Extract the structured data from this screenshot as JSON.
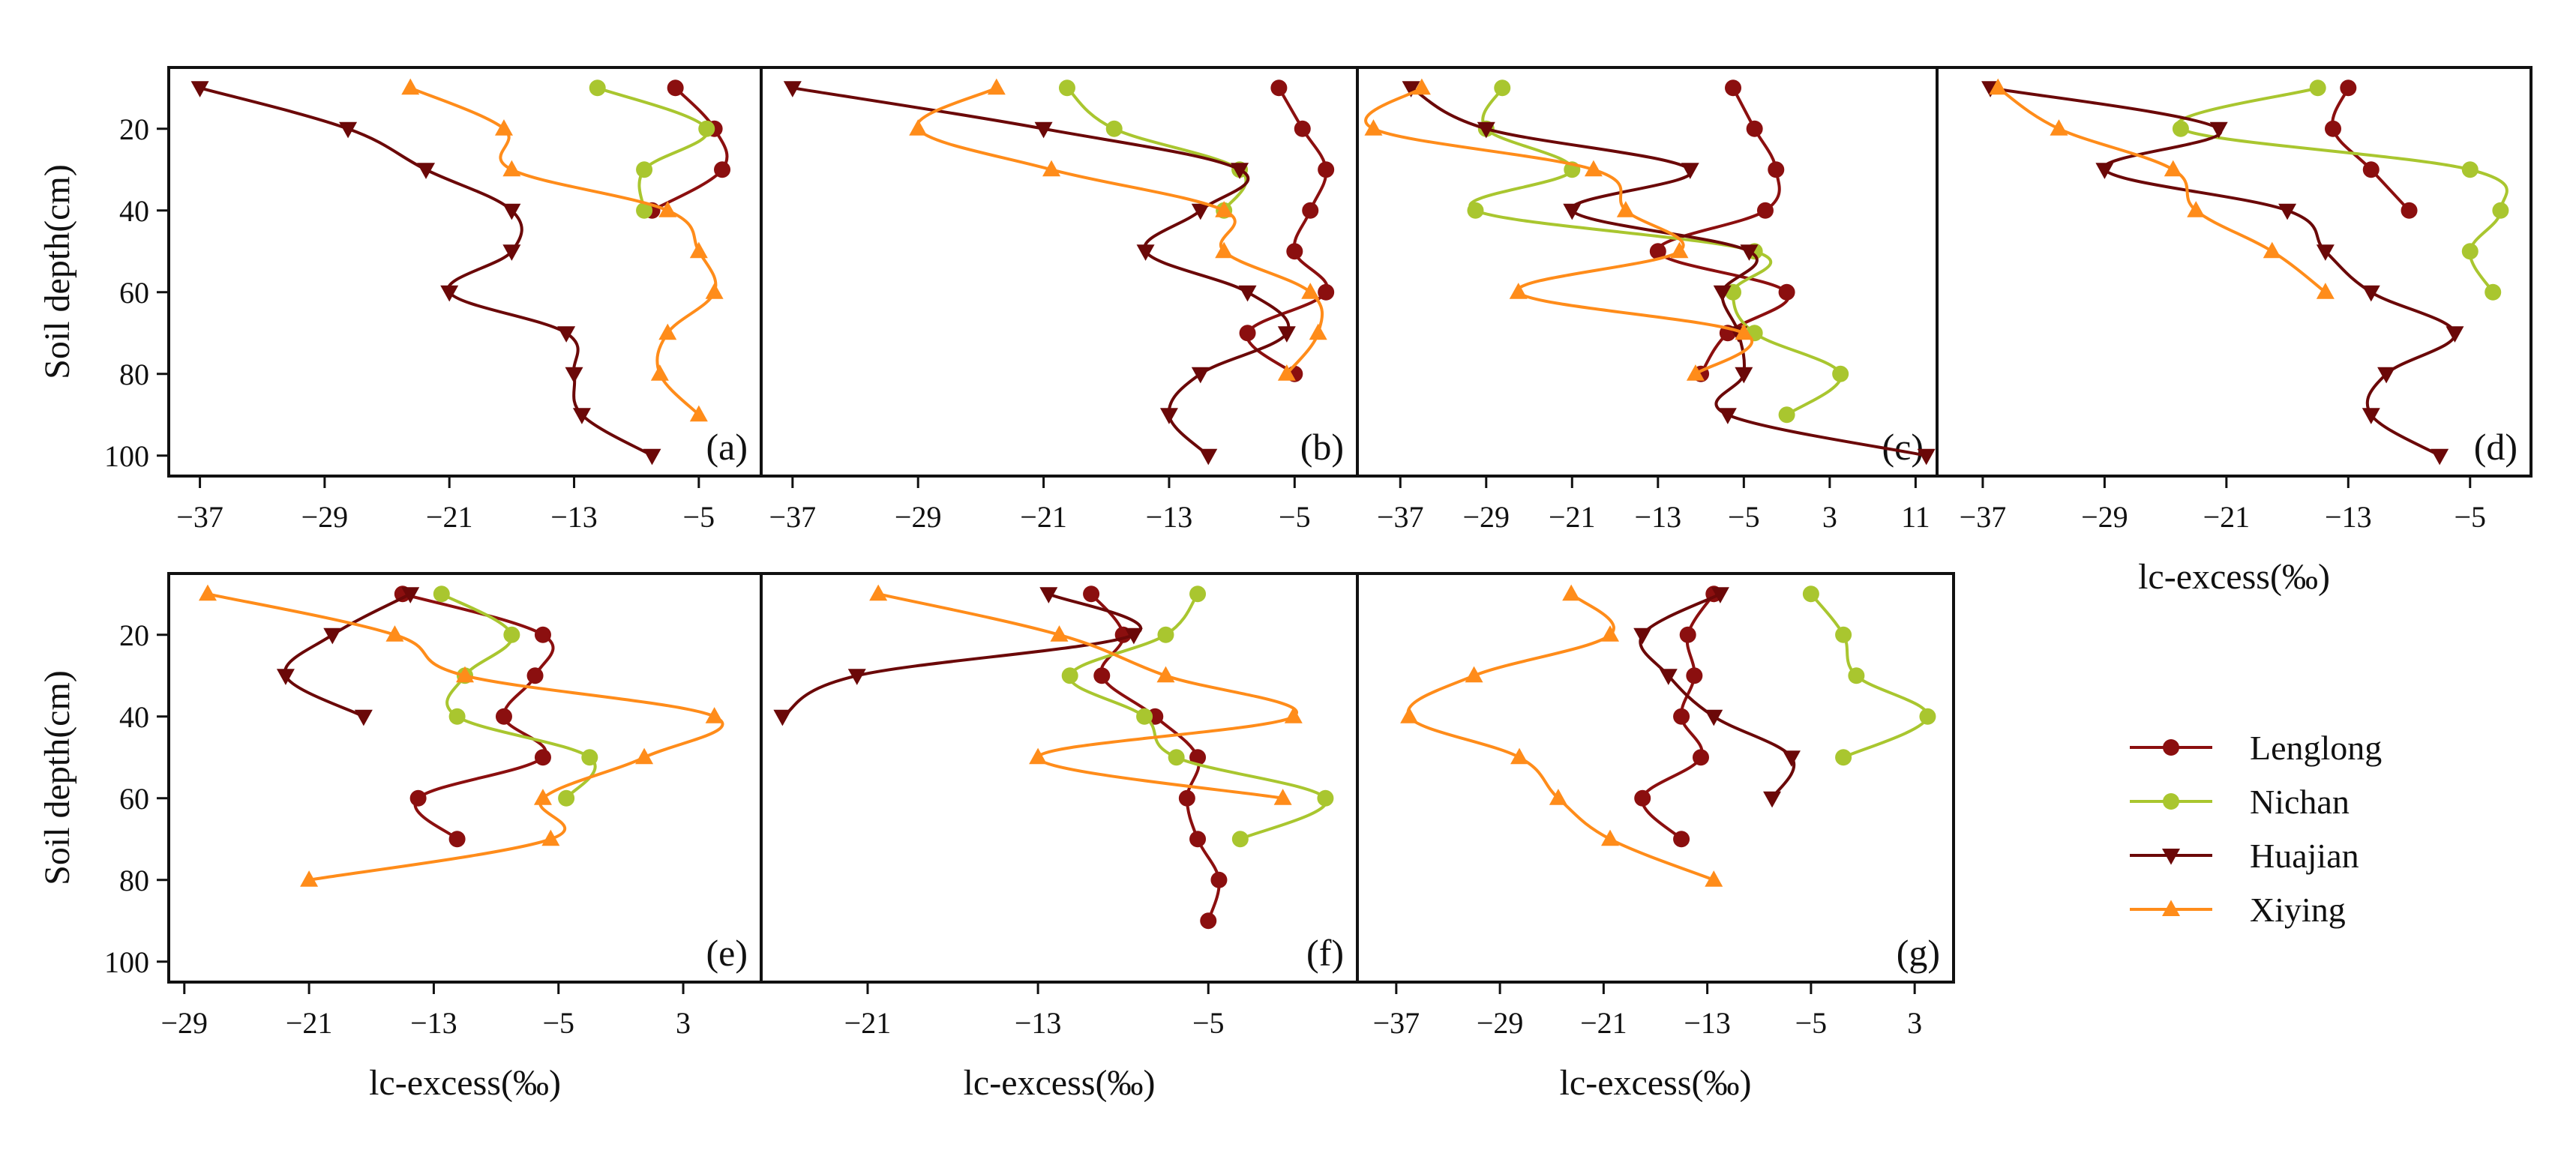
{
  "colors": {
    "Lenglong": "#8b0f0f",
    "Nichan": "#a9c62f",
    "Huajian": "#6b0808",
    "Xiying": "#ff8c1a"
  },
  "chart_data": [
    {
      "type": "line",
      "panel": "(a)",
      "xticks": [
        -37,
        -29,
        -21,
        -13,
        -5
      ],
      "xlim": [
        -39,
        -1
      ],
      "ylim": [
        5,
        105
      ],
      "yticks": [
        20,
        40,
        60,
        80,
        100
      ],
      "ylabel": "Soil depth(cm)",
      "xlabel": "",
      "series": [
        {
          "name": "Lenglong",
          "marker": "circle",
          "points": [
            [
              -6.5,
              10
            ],
            [
              -4,
              20
            ],
            [
              -3.5,
              30
            ],
            [
              -8,
              40
            ]
          ]
        },
        {
          "name": "Nichan",
          "marker": "circle",
          "points": [
            [
              -11.5,
              10
            ],
            [
              -4.5,
              20
            ],
            [
              -8.5,
              30
            ],
            [
              -8.5,
              40
            ]
          ]
        },
        {
          "name": "Huajian",
          "marker": "triangle-down",
          "points": [
            [
              -37,
              10
            ],
            [
              -27.5,
              20
            ],
            [
              -22.5,
              30
            ],
            [
              -17,
              40
            ],
            [
              -17,
              50
            ],
            [
              -21,
              60
            ],
            [
              -13.5,
              70
            ],
            [
              -13,
              80
            ],
            [
              -12.5,
              90
            ],
            [
              -8,
              100
            ]
          ]
        },
        {
          "name": "Xiying",
          "marker": "triangle-up",
          "points": [
            [
              -23.5,
              10
            ],
            [
              -17.5,
              20
            ],
            [
              -17,
              30
            ],
            [
              -7,
              40
            ],
            [
              -5,
              50
            ],
            [
              -4,
              60
            ],
            [
              -7,
              70
            ],
            [
              -7.5,
              80
            ],
            [
              -5,
              90
            ]
          ]
        }
      ]
    },
    {
      "type": "line",
      "panel": "(b)",
      "xticks": [
        -37,
        -29,
        -21,
        -13,
        -5
      ],
      "xlim": [
        -39,
        -1
      ],
      "ylim": [
        5,
        105
      ],
      "yticks": [
        20,
        40,
        60,
        80,
        100
      ],
      "ylabel": "",
      "xlabel": "",
      "series": [
        {
          "name": "Lenglong",
          "marker": "circle",
          "points": [
            [
              -6,
              10
            ],
            [
              -4.5,
              20
            ],
            [
              -3,
              30
            ],
            [
              -4,
              40
            ],
            [
              -5,
              50
            ],
            [
              -3,
              60
            ],
            [
              -8,
              70
            ],
            [
              -5,
              80
            ]
          ]
        },
        {
          "name": "Nichan",
          "marker": "circle",
          "points": [
            [
              -19.5,
              10
            ],
            [
              -16.5,
              20
            ],
            [
              -8.5,
              30
            ],
            [
              -9.5,
              40
            ]
          ]
        },
        {
          "name": "Huajian",
          "marker": "triangle-down",
          "points": [
            [
              -37,
              10
            ],
            [
              -21,
              20
            ],
            [
              -8.5,
              30
            ],
            [
              -11,
              40
            ],
            [
              -14.5,
              50
            ],
            [
              -8,
              60
            ],
            [
              -5.5,
              70
            ],
            [
              -11,
              80
            ],
            [
              -13,
              90
            ],
            [
              -10.5,
              100
            ]
          ]
        },
        {
          "name": "Xiying",
          "marker": "triangle-up",
          "points": [
            [
              -24,
              10
            ],
            [
              -29,
              20
            ],
            [
              -20.5,
              30
            ],
            [
              -9.5,
              40
            ],
            [
              -9.5,
              50
            ],
            [
              -4,
              60
            ],
            [
              -3.5,
              70
            ],
            [
              -5.5,
              80
            ]
          ]
        }
      ]
    },
    {
      "type": "line",
      "panel": "(c)",
      "xticks": [
        -37,
        -29,
        -21,
        -13,
        -5,
        3,
        11
      ],
      "xlim": [
        -41,
        13
      ],
      "ylim": [
        5,
        105
      ],
      "yticks": [
        20,
        40,
        60,
        80,
        100
      ],
      "ylabel": "",
      "xlabel": "",
      "series": [
        {
          "name": "Lenglong",
          "marker": "circle",
          "points": [
            [
              -6,
              10
            ],
            [
              -4,
              20
            ],
            [
              -2,
              30
            ],
            [
              -3,
              40
            ],
            [
              -13,
              50
            ],
            [
              -1,
              60
            ],
            [
              -6.5,
              70
            ],
            [
              -9,
              80
            ]
          ]
        },
        {
          "name": "Nichan",
          "marker": "circle",
          "points": [
            [
              -27.5,
              10
            ],
            [
              -29,
              20
            ],
            [
              -21,
              30
            ],
            [
              -30,
              40
            ],
            [
              -4,
              50
            ],
            [
              -6,
              60
            ],
            [
              -4,
              70
            ],
            [
              4,
              80
            ],
            [
              -1,
              90
            ]
          ]
        },
        {
          "name": "Huajian",
          "marker": "triangle-down",
          "points": [
            [
              -36,
              10
            ],
            [
              -29,
              20
            ],
            [
              -10,
              30
            ],
            [
              -21,
              40
            ],
            [
              -4.5,
              50
            ],
            [
              -7,
              60
            ],
            [
              -5.5,
              70
            ],
            [
              -5,
              80
            ],
            [
              -6.5,
              90
            ],
            [
              12,
              100
            ]
          ]
        },
        {
          "name": "Xiying",
          "marker": "triangle-up",
          "points": [
            [
              -35,
              10
            ],
            [
              -39.5,
              20
            ],
            [
              -19,
              30
            ],
            [
              -16,
              40
            ],
            [
              -11,
              50
            ],
            [
              -26,
              60
            ],
            [
              -5,
              70
            ],
            [
              -9.5,
              80
            ]
          ]
        }
      ]
    },
    {
      "type": "line",
      "panel": "(d)",
      "xticks": [
        -37,
        -29,
        -21,
        -13,
        -5
      ],
      "xlim": [
        -40,
        -1
      ],
      "ylim": [
        5,
        105
      ],
      "yticks": [
        20,
        40,
        60,
        80,
        100
      ],
      "ylabel": "",
      "xlabel": "lc-excess(‰)",
      "series": [
        {
          "name": "Lenglong",
          "marker": "circle",
          "points": [
            [
              -13,
              10
            ],
            [
              -14,
              20
            ],
            [
              -11.5,
              30
            ],
            [
              -9,
              40
            ]
          ]
        },
        {
          "name": "Nichan",
          "marker": "circle",
          "points": [
            [
              -15,
              10
            ],
            [
              -24,
              20
            ],
            [
              -5,
              30
            ],
            [
              -3,
              40
            ],
            [
              -5,
              50
            ],
            [
              -3.5,
              60
            ]
          ]
        },
        {
          "name": "Huajian",
          "marker": "triangle-down",
          "points": [
            [
              -36.5,
              10
            ],
            [
              -21.5,
              20
            ],
            [
              -29,
              30
            ],
            [
              -17,
              40
            ],
            [
              -14.5,
              50
            ],
            [
              -11.5,
              60
            ],
            [
              -6,
              70
            ],
            [
              -10.5,
              80
            ],
            [
              -11.5,
              90
            ],
            [
              -7,
              100
            ]
          ]
        },
        {
          "name": "Xiying",
          "marker": "triangle-up",
          "points": [
            [
              -36,
              10
            ],
            [
              -32,
              20
            ],
            [
              -24.5,
              30
            ],
            [
              -23,
              40
            ],
            [
              -18,
              50
            ],
            [
              -14.5,
              60
            ]
          ]
        }
      ]
    },
    {
      "type": "line",
      "panel": "(e)",
      "xticks": [
        -29,
        -21,
        -13,
        -5,
        3
      ],
      "xlim": [
        -30,
        8
      ],
      "ylim": [
        5,
        105
      ],
      "yticks": [
        20,
        40,
        60,
        80,
        100
      ],
      "ylabel": "Soil depth(cm)",
      "xlabel": "lc-excess(‰)",
      "series": [
        {
          "name": "Lenglong",
          "marker": "circle",
          "points": [
            [
              -15,
              10
            ],
            [
              -6,
              20
            ],
            [
              -6.5,
              30
            ],
            [
              -8.5,
              40
            ],
            [
              -6,
              50
            ],
            [
              -14,
              60
            ],
            [
              -11.5,
              70
            ]
          ]
        },
        {
          "name": "Nichan",
          "marker": "circle",
          "points": [
            [
              -12.5,
              10
            ],
            [
              -8,
              20
            ],
            [
              -11,
              30
            ],
            [
              -11.5,
              40
            ],
            [
              -3,
              50
            ],
            [
              -4.5,
              60
            ]
          ]
        },
        {
          "name": "Huajian",
          "marker": "triangle-down",
          "points": [
            [
              -14.5,
              10
            ],
            [
              -19.5,
              20
            ],
            [
              -22.5,
              30
            ],
            [
              -17.5,
              40
            ]
          ]
        },
        {
          "name": "Xiying",
          "marker": "triangle-up",
          "points": [
            [
              -27.5,
              10
            ],
            [
              -15.5,
              20
            ],
            [
              -11,
              30
            ],
            [
              5,
              40
            ],
            [
              0.5,
              50
            ],
            [
              -6,
              60
            ],
            [
              -5.5,
              70
            ],
            [
              -21,
              80
            ]
          ]
        }
      ]
    },
    {
      "type": "line",
      "panel": "(f)",
      "xticks": [
        -21,
        -13,
        -5
      ],
      "xlim": [
        -26,
        2
      ],
      "ylim": [
        5,
        105
      ],
      "yticks": [
        20,
        40,
        60,
        80,
        100
      ],
      "ylabel": "",
      "xlabel": "lc-excess(‰)",
      "series": [
        {
          "name": "Lenglong",
          "marker": "circle",
          "points": [
            [
              -10.5,
              10
            ],
            [
              -9,
              20
            ],
            [
              -10,
              30
            ],
            [
              -7.5,
              40
            ],
            [
              -5.5,
              50
            ],
            [
              -6,
              60
            ],
            [
              -5.5,
              70
            ],
            [
              -4.5,
              80
            ],
            [
              -5,
              90
            ]
          ]
        },
        {
          "name": "Nichan",
          "marker": "circle",
          "points": [
            [
              -5.5,
              10
            ],
            [
              -7,
              20
            ],
            [
              -11.5,
              30
            ],
            [
              -8,
              40
            ],
            [
              -6.5,
              50
            ],
            [
              0.5,
              60
            ],
            [
              -3.5,
              70
            ]
          ]
        },
        {
          "name": "Huajian",
          "marker": "triangle-down",
          "points": [
            [
              -12.5,
              10
            ],
            [
              -8.5,
              20
            ],
            [
              -21.5,
              30
            ],
            [
              -25,
              40
            ]
          ]
        },
        {
          "name": "Xiying",
          "marker": "triangle-up",
          "points": [
            [
              -20.5,
              10
            ],
            [
              -12,
              20
            ],
            [
              -7,
              30
            ],
            [
              -1,
              40
            ],
            [
              -13,
              50
            ],
            [
              -1.5,
              60
            ]
          ]
        }
      ]
    },
    {
      "type": "line",
      "panel": "(g)",
      "xticks": [
        -37,
        -29,
        -21,
        -13,
        -5,
        3
      ],
      "xlim": [
        -40,
        6
      ],
      "ylim": [
        5,
        105
      ],
      "yticks": [
        20,
        40,
        60,
        80,
        100
      ],
      "ylabel": "",
      "xlabel": "lc-excess(‰)",
      "series": [
        {
          "name": "Lenglong",
          "marker": "circle",
          "points": [
            [
              -12.5,
              10
            ],
            [
              -14.5,
              20
            ],
            [
              -14,
              30
            ],
            [
              -15,
              40
            ],
            [
              -13.5,
              50
            ],
            [
              -18,
              60
            ],
            [
              -15,
              70
            ]
          ]
        },
        {
          "name": "Nichan",
          "marker": "circle",
          "points": [
            [
              -5,
              10
            ],
            [
              -2.5,
              20
            ],
            [
              -1.5,
              30
            ],
            [
              4,
              40
            ],
            [
              -2.5,
              50
            ]
          ]
        },
        {
          "name": "Huajian",
          "marker": "triangle-down",
          "points": [
            [
              -12,
              10
            ],
            [
              -18,
              20
            ],
            [
              -16,
              30
            ],
            [
              -12.5,
              40
            ],
            [
              -6.5,
              50
            ],
            [
              -8,
              60
            ]
          ]
        },
        {
          "name": "Xiying",
          "marker": "triangle-up",
          "points": [
            [
              -23.5,
              10
            ],
            [
              -20.5,
              20
            ],
            [
              -31,
              30
            ],
            [
              -36,
              40
            ],
            [
              -27.5,
              50
            ],
            [
              -24.5,
              60
            ],
            [
              -20.5,
              70
            ],
            [
              -12.5,
              80
            ]
          ]
        }
      ]
    }
  ],
  "legend": {
    "position": "right",
    "entries": [
      {
        "name": "Lenglong",
        "marker": "circle"
      },
      {
        "name": "Nichan",
        "marker": "circle"
      },
      {
        "name": "Huajian",
        "marker": "triangle-down"
      },
      {
        "name": "Xiying",
        "marker": "triangle-up"
      }
    ]
  }
}
